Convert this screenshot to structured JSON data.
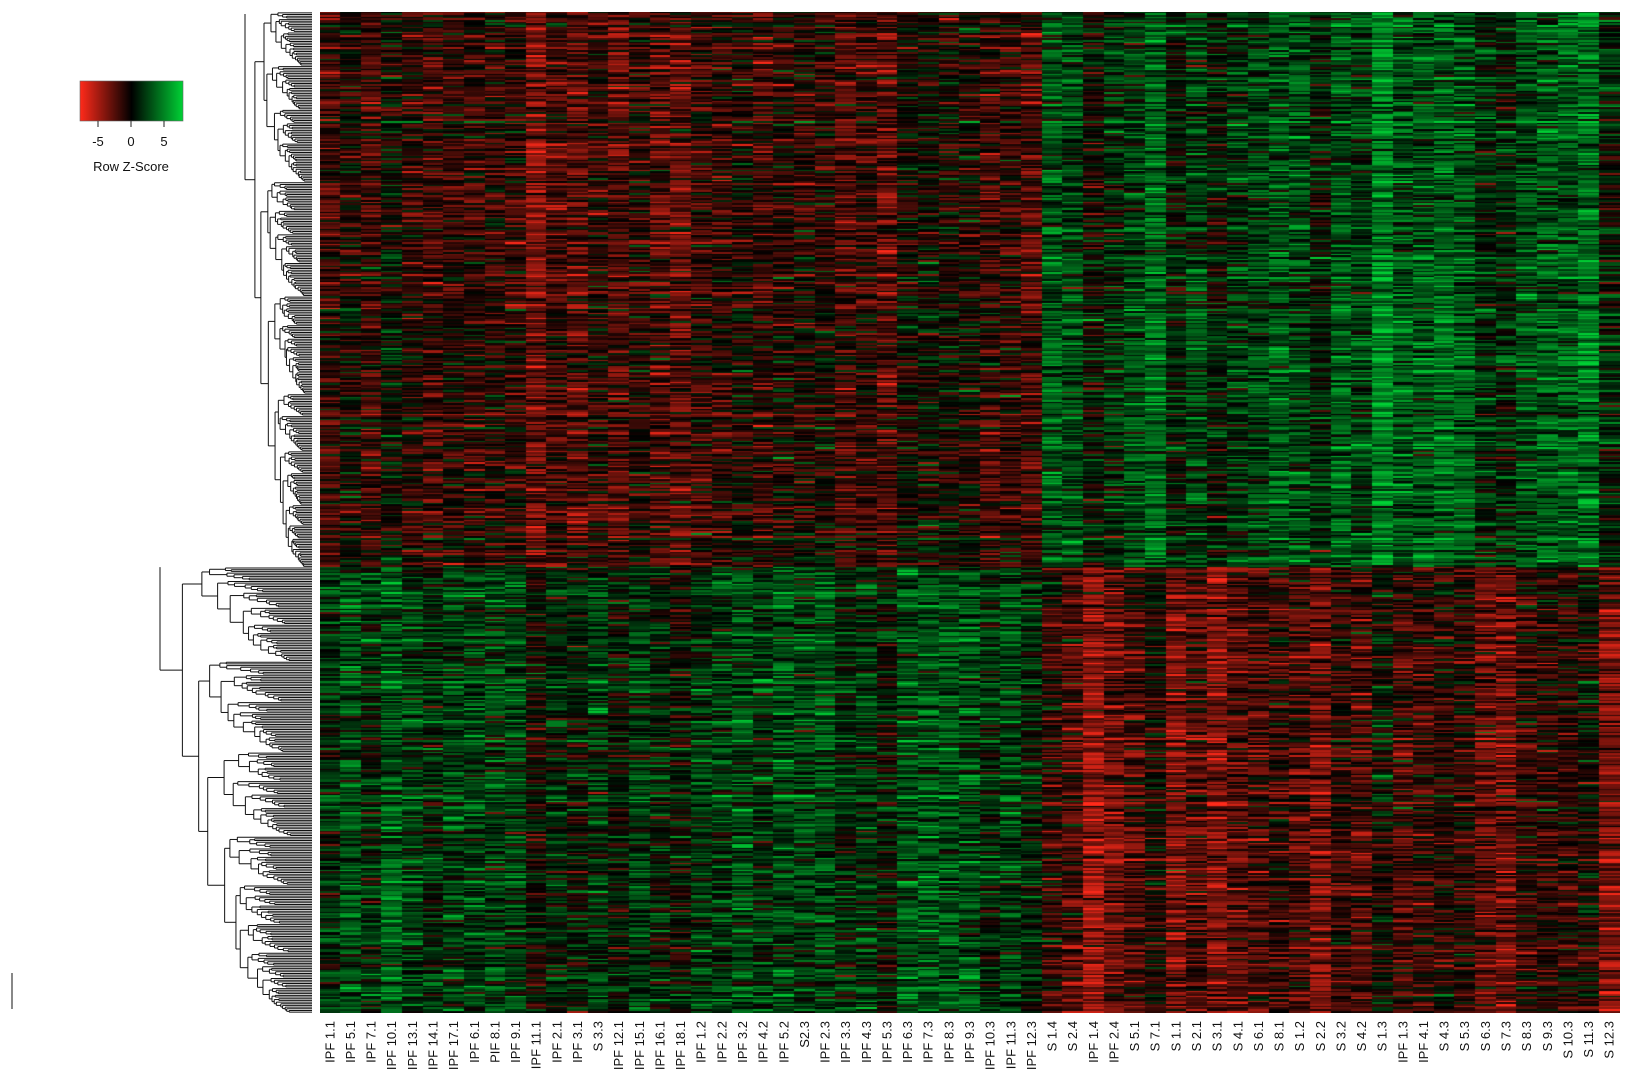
{
  "chart_data": {
    "type": "heatmap",
    "title": "",
    "xlabel": "",
    "ylabel": "",
    "colormap": {
      "low": "#ff2a1a",
      "mid": "#000000",
      "high": "#00d135"
    },
    "legend": {
      "title": "Row Z-Score",
      "ticks": [
        "-5",
        "0",
        "5"
      ],
      "range": [
        -7,
        7
      ],
      "placement": "top-left"
    },
    "dendrogram": "rows",
    "columns": [
      "IPF 1.1",
      "IPF 5.1",
      "IPF 7.1",
      "IPF 10.1",
      "IPF 13.1",
      "IPF 14.1",
      "IPF 17.1",
      "IPF 6.1",
      "PIF 8.1",
      "IPF 9.1",
      "IPF 11.1",
      "IPF 2.1",
      "IPF 3.1",
      "S 3.3",
      "IPF 12.1",
      "IPF 15.1",
      "IPF 16.1",
      "IPF 18.1",
      "IPF 1.2",
      "IPF 2.2",
      "IPF 3.2",
      "IPF 4.2",
      "IPF 5.2",
      "S2.3",
      "IPF 2.3",
      "IPF 3.3",
      "IPF 4.3",
      "IPF 5.3",
      "IPF 6.3",
      "IPF 7.3",
      "IPF 8.3",
      "IPF 9.3",
      "IPF 10.3",
      "IPF 11.3",
      "IPF 12.3",
      "S 1.4",
      "S 2.4",
      "IPF 1.4",
      "IPF 2.4",
      "S 5.1",
      "S 7.1",
      "S 1.1",
      "S 2.1",
      "S 3.1",
      "S 4.1",
      "S 6.1",
      "S 8.1",
      "S 1.2",
      "S 2.2",
      "S 3.2",
      "S 4.2",
      "S 1.3",
      "IPF 1.3",
      "IPF 4.1",
      "S 4.3",
      "S 5.3",
      "S 6.3",
      "S 7.3",
      "S 8.3",
      "S 9.3",
      "S 10.3",
      "S 11.3",
      "S 12.3"
    ],
    "row_cluster_sizes": [
      330,
      265
    ],
    "cluster_mean_zscore": [
      {
        "row_cluster": 1,
        "columns": "IPF 1.1 – IPF 12.3",
        "mean": -1.5
      },
      {
        "row_cluster": 1,
        "columns": "S 1.4 – S 12.3",
        "mean": 2.5
      },
      {
        "row_cluster": 2,
        "columns": "IPF 1.1 – IPF 12.3",
        "mean": 1.8
      },
      {
        "row_cluster": 2,
        "columns": "S 1.4 – S 12.3",
        "mean": -1.8
      }
    ]
  }
}
